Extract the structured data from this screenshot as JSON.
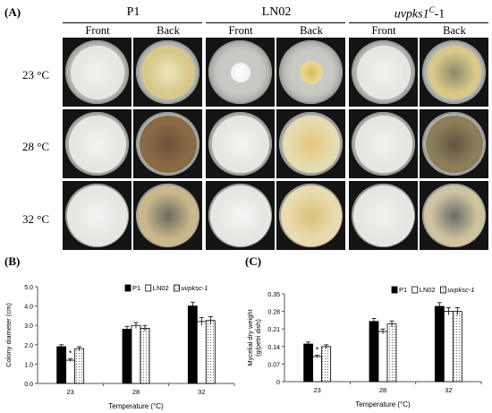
{
  "panel_a": {
    "label": "(A)",
    "strains": [
      "P1",
      "LN02",
      "uvpks1C-1"
    ],
    "strain_display": {
      "P1": "P1",
      "LN02": "LN02",
      "uvpks1_base": "uvpks1",
      "uvpks1_sup": "C",
      "uvpks1_tail": "-1"
    },
    "views": [
      "Front",
      "Back",
      "Front",
      "Back",
      "Front",
      "Back"
    ],
    "temperatures": [
      "23 °C",
      "28 °C",
      "32 °C"
    ],
    "plate_colors": {
      "dark_bg": "#141414",
      "front_colony": "#e6e6e2",
      "back_yellow": "#d8c88a",
      "back_brown": "#8a6a45",
      "agar": "#c9cac5"
    }
  },
  "chart_data": [
    {
      "type": "bar",
      "panel_label": "(B)",
      "categories": [
        "23",
        "28",
        "32"
      ],
      "series": [
        {
          "name": "P1",
          "values": [
            1.9,
            2.8,
            4.0
          ],
          "errors": [
            0.1,
            0.15,
            0.2
          ],
          "color": "#000000",
          "pattern": "solid"
        },
        {
          "name": "LN02",
          "values": [
            1.2,
            3.0,
            3.2
          ],
          "errors": [
            0.07,
            0.15,
            0.2
          ],
          "color": "#ffffff",
          "pattern": "empty"
        },
        {
          "name": "uvpksc-1",
          "values": [
            1.8,
            2.85,
            3.25
          ],
          "errors": [
            0.1,
            0.15,
            0.2
          ],
          "color": "#ffffff",
          "pattern": "dotted"
        }
      ],
      "significance": [
        {
          "category": "23",
          "series": "LN02",
          "mark": "*"
        }
      ],
      "xlabel": "Temperature (°C)",
      "ylabel": "Colony diameter (cm)",
      "ylim": [
        0.0,
        5.0
      ],
      "yticks": [
        "0.0",
        "1.0",
        "2.0",
        "3.0",
        "4.0",
        "5.0"
      ],
      "legend": "top-right"
    },
    {
      "type": "bar",
      "panel_label": "(C)",
      "categories": [
        "23",
        "28",
        "32"
      ],
      "series": [
        {
          "name": "P1",
          "values": [
            0.15,
            0.24,
            0.3
          ],
          "errors": [
            0.008,
            0.012,
            0.015
          ],
          "color": "#000000",
          "pattern": "solid"
        },
        {
          "name": "LN02",
          "values": [
            0.1,
            0.2,
            0.28
          ],
          "errors": [
            0.005,
            0.01,
            0.015
          ],
          "color": "#ffffff",
          "pattern": "empty"
        },
        {
          "name": "uvpksc-1",
          "values": [
            0.14,
            0.23,
            0.28
          ],
          "errors": [
            0.007,
            0.012,
            0.015
          ],
          "color": "#ffffff",
          "pattern": "dotted"
        }
      ],
      "significance": [
        {
          "category": "23",
          "series": "LN02",
          "mark": "*"
        }
      ],
      "xlabel": "Temperature (°C)",
      "ylabel": "Mycelial dry weight (g/petri dish)",
      "ylim": [
        0.0,
        0.35
      ],
      "yticks": [
        "0",
        "0.07",
        "0.14",
        "0.21",
        "0.28",
        "0.35"
      ],
      "legend": "top-right"
    }
  ]
}
